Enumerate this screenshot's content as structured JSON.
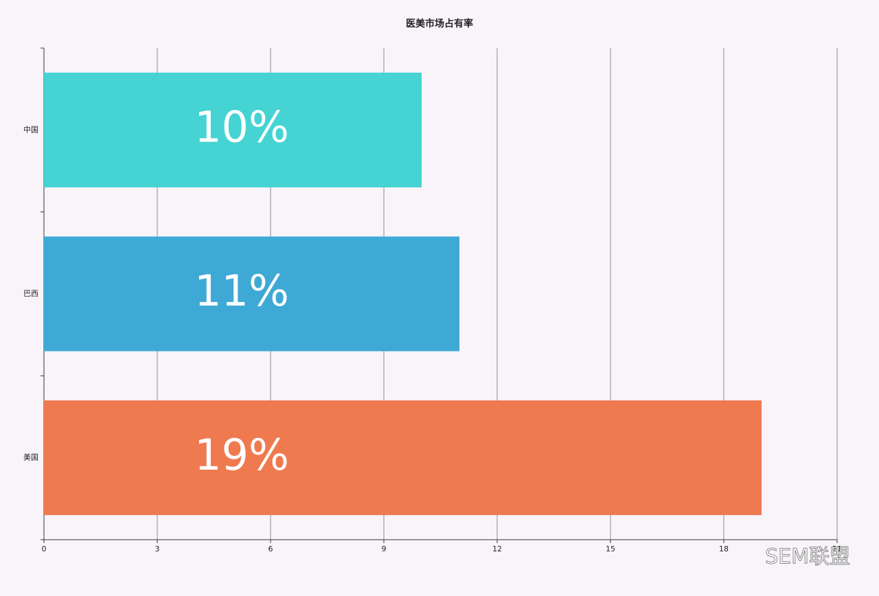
{
  "chart_data": {
    "type": "hbar",
    "title": "医美市场占有率",
    "categories": [
      "中国",
      "巴西",
      "美国"
    ],
    "values": [
      10,
      11,
      19
    ],
    "value_labels": [
      "10%",
      "11%",
      "19%"
    ],
    "colors": [
      "#45d3d3",
      "#3fa9d6",
      "#ef7a50"
    ],
    "xlim": [
      0,
      21
    ],
    "xticks": [
      0,
      3,
      6,
      9,
      12,
      15,
      18,
      21
    ],
    "grid": true
  },
  "watermark": "SEM联盟"
}
